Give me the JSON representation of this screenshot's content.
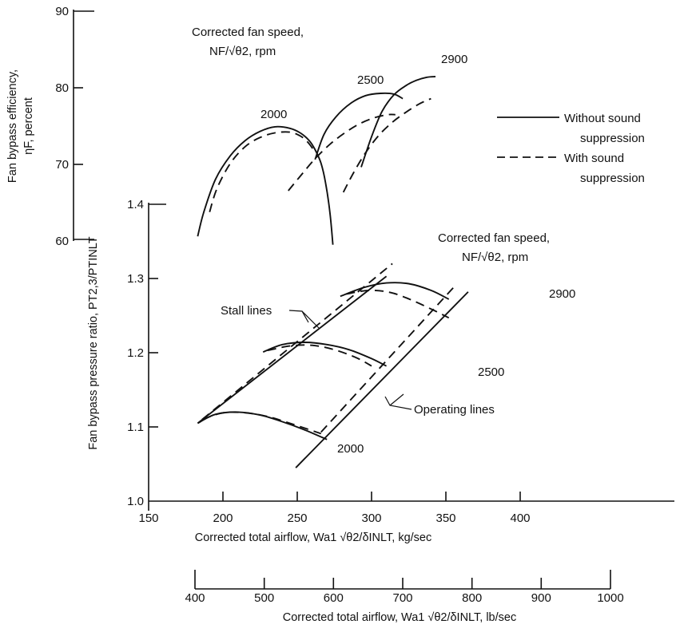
{
  "chart_data": [
    {
      "type": "line",
      "title": "",
      "ylabel_line1": "Fan bypass efficiency,",
      "ylabel_line2": "ηF, percent",
      "ylim": [
        60,
        90
      ],
      "yticks": [
        "60",
        "70",
        "80",
        "90"
      ],
      "speed_label_line1": "Corrected fan speed,",
      "speed_label_line2": "NF/√θ2, rpm",
      "legend": {
        "placement": "right",
        "solid_line1": "Without sound",
        "solid_line2": "suppression",
        "dashed_line1": "With sound",
        "dashed_line2": "suppression"
      },
      "speed_labels": [
        "2000",
        "2500",
        "2900"
      ],
      "series": [
        {
          "name": "Without sound suppression",
          "speed": "2000",
          "style": "solid",
          "x": [
            183,
            187,
            195,
            205,
            215,
            225,
            235,
            245,
            252,
            258,
            262,
            266,
            269,
            272,
            274
          ],
          "y": [
            60.4,
            63.5,
            67.9,
            71.0,
            73.0,
            74.2,
            74.8,
            74.6,
            74.0,
            73.0,
            71.8,
            70.0,
            67.5,
            63.5,
            59.3
          ]
        },
        {
          "name": "With sound suppression",
          "speed": "2000",
          "style": "dashed",
          "x": [
            191,
            196,
            205,
            215,
            225,
            235,
            245,
            252,
            257,
            262
          ],
          "y": [
            63.6,
            66.7,
            70.0,
            72.2,
            73.4,
            74.0,
            74.1,
            73.6,
            72.8,
            71.5
          ]
        },
        {
          "name": "Without sound suppression",
          "speed": "2500",
          "style": "solid",
          "x": [
            262,
            268,
            276,
            286,
            296,
            306,
            315,
            321
          ],
          "y": [
            70.5,
            73.8,
            76.1,
            77.9,
            78.9,
            79.2,
            79.1,
            78.5
          ]
        },
        {
          "name": "With sound suppression",
          "speed": "2500",
          "style": "dashed",
          "x": [
            244,
            252,
            262,
            272,
            282,
            292,
            302,
            311,
            316
          ],
          "y": [
            66.4,
            68.3,
            70.6,
            72.5,
            74.0,
            75.2,
            76.0,
            76.4,
            76.4
          ]
        },
        {
          "name": "Without sound suppression",
          "speed": "2900",
          "style": "solid",
          "x": [
            293,
            300,
            307,
            315,
            323,
            330,
            337,
            343
          ],
          "y": [
            69.5,
            73.5,
            76.8,
            79.0,
            80.2,
            80.9,
            81.3,
            81.4
          ]
        },
        {
          "name": "With sound suppression",
          "speed": "2900",
          "style": "dashed",
          "x": [
            281,
            288,
            296,
            305,
            314,
            323,
            332,
            340
          ],
          "y": [
            66.2,
            68.8,
            71.4,
            73.7,
            75.4,
            76.7,
            77.8,
            78.5
          ]
        }
      ]
    },
    {
      "type": "line",
      "title": "",
      "xlabel": "Corrected total airflow, Wa1 √θ2/δINLT, kg/sec",
      "xlabel_secondary": "Corrected total airflow, Wa1 √θ2/δINLT, lb/sec",
      "ylabel": "Fan bypass pressure ratio, PT2,3/PTINLT",
      "xlim": [
        150,
        400
      ],
      "xticks": [
        "150",
        "200",
        "250",
        "300",
        "350",
        "400"
      ],
      "xticks_secondary": [
        "400",
        "500",
        "600",
        "700",
        "800",
        "900",
        "1000"
      ],
      "ylim": [
        1.0,
        1.4
      ],
      "yticks": [
        "1.0",
        "1.1",
        "1.2",
        "1.3",
        "1.4"
      ],
      "speed_label_line1": "Corrected fan speed,",
      "speed_label_line2": "NF/√θ2, rpm",
      "speed_labels": [
        "2000",
        "2500",
        "2900"
      ],
      "annotations": [
        "Stall lines",
        "Operating lines"
      ],
      "series": [
        {
          "name": "Stall line, without sound suppression",
          "style": "solid",
          "x": [
            183,
            310
          ],
          "y": [
            1.105,
            1.303
          ]
        },
        {
          "name": "Stall line, with sound suppression",
          "style": "dashed",
          "x": [
            186,
            314
          ],
          "y": [
            1.11,
            1.32
          ]
        },
        {
          "name": "Operating line, without sound suppression",
          "style": "solid",
          "x": [
            249,
            365
          ],
          "y": [
            1.045,
            1.282
          ]
        },
        {
          "name": "Operating line, with sound suppression",
          "style": "dashed",
          "x": [
            266,
            357
          ],
          "y": [
            1.093,
            1.292
          ]
        },
        {
          "name": "Without sound suppression",
          "speed": "2000",
          "style": "solid",
          "x": [
            183,
            195,
            210,
            225,
            240,
            255,
            270
          ],
          "y": [
            1.105,
            1.117,
            1.12,
            1.116,
            1.107,
            1.096,
            1.083
          ]
        },
        {
          "name": "With sound suppression",
          "speed": "2000",
          "style": "dashed",
          "x": [
            186,
            200,
            215,
            230,
            245,
            260,
            266
          ],
          "y": [
            1.11,
            1.119,
            1.119,
            1.114,
            1.105,
            1.095,
            1.091
          ]
        },
        {
          "name": "Without sound suppression",
          "speed": "2500",
          "style": "solid",
          "x": [
            227,
            240,
            255,
            270,
            285,
            300,
            310
          ],
          "y": [
            1.201,
            1.211,
            1.214,
            1.211,
            1.204,
            1.192,
            1.182
          ]
        },
        {
          "name": "With sound suppression",
          "speed": "2500",
          "style": "dashed",
          "x": [
            230,
            245,
            260,
            275,
            290,
            300
          ],
          "y": [
            1.203,
            1.209,
            1.21,
            1.204,
            1.193,
            1.182
          ]
        },
        {
          "name": "Without sound suppression",
          "speed": "2900",
          "style": "solid",
          "x": [
            279,
            295,
            310,
            325,
            340,
            352
          ],
          "y": [
            1.276,
            1.288,
            1.294,
            1.293,
            1.284,
            1.272
          ]
        },
        {
          "name": "With sound suppression",
          "speed": "2900",
          "style": "dashed",
          "x": [
            283,
            298,
            313,
            328,
            343,
            352
          ],
          "y": [
            1.279,
            1.284,
            1.281,
            1.27,
            1.256,
            1.247
          ]
        }
      ]
    }
  ]
}
